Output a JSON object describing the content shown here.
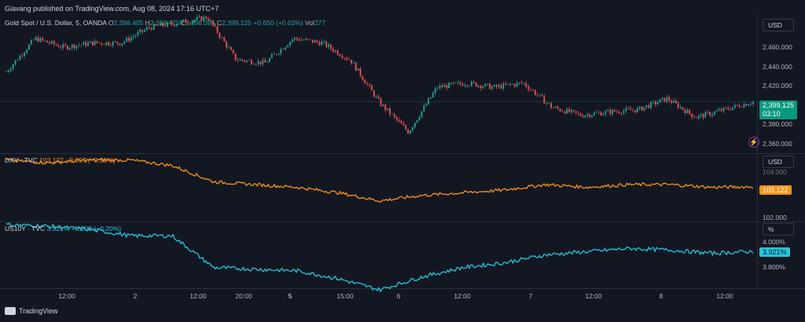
{
  "header": {
    "published": "Giavang published on TradingView.com, Aug 08, 2024 17:16 UTC+7"
  },
  "gold": {
    "name": "Gold Spot / U.S. Dollar, 5, OANDA",
    "o_key": "O",
    "o": "2,398.405",
    "h_key": "H",
    "h": "2,399.475",
    "l_key": "L",
    "l": "2,398.395",
    "c_key": "C",
    "c": "2,399.125",
    "chg": "+0.650 (+0.03%)",
    "vol_key": "Vol",
    "vol": "277",
    "price_label": "2,399.125",
    "countdown": "03:10",
    "unit": "USD",
    "ticks": [
      "2,460.000",
      "2,440.000",
      "2,420.000",
      "2,380.000",
      "2,360.000"
    ],
    "color_up": "#26a69a",
    "color_down": "#ef5350"
  },
  "dxy": {
    "name": "DXY · TVC",
    "value": "103.122",
    "chg": "−0.097 (−0.09%)",
    "price_label": "103.122",
    "unit": "USD",
    "ticks": [
      "104.000",
      "102.000"
    ],
    "color": "#f7931a"
  },
  "us10y": {
    "name": "US10Y · TVC",
    "value": "3.921%",
    "chg": "+0.008 (+0.20%)",
    "price_label": "3.921%",
    "unit": "%",
    "ticks": [
      "4.000%",
      "3.800%"
    ],
    "color": "#26c6da"
  },
  "x_axis": {
    "ticks": [
      "12:00",
      "2",
      "12:00",
      "20:00",
      "5",
      "15:00",
      "6",
      "12:00",
      "7",
      "12:00",
      "8",
      "12:00"
    ]
  },
  "footer": {
    "brand": "TradingView"
  },
  "chart_data": [
    {
      "type": "candlestick",
      "series": [
        {
          "name": "Gold Spot / U.S. Dollar, 5, OANDA"
        }
      ],
      "x": [
        "Aug 1 06:00",
        "Aug 1 12:00",
        "Aug 1 18:00",
        "Aug 2 06:00",
        "Aug 2 12:00",
        "Aug 2 16:00",
        "Aug 2 19:00",
        "Aug 2 20:00",
        "Aug 2 21:00",
        "Aug 5 03:00",
        "Aug 5 06:00",
        "Aug 5 12:00",
        "Aug 5 15:00",
        "Aug 5 17:00",
        "Aug 5 18:00",
        "Aug 5 20:00",
        "Aug 6 06:00",
        "Aug 6 12:00",
        "Aug 6 20:00",
        "Aug 7 00:00",
        "Aug 7 06:00",
        "Aug 7 12:00",
        "Aug 7 20:00",
        "Aug 8 00:00",
        "Aug 8 06:00",
        "Aug 8 12:00",
        "Aug 8 17:00"
      ],
      "close": [
        2426,
        2456,
        2448,
        2452,
        2452,
        2466,
        2470,
        2475,
        2437,
        2434,
        2456,
        2452,
        2436,
        2398,
        2372,
        2412,
        2416,
        2412,
        2416,
        2394,
        2387,
        2390,
        2392,
        2402,
        2385,
        2392,
        2399.125
      ],
      "ylim": [
        2355,
        2475
      ]
    },
    {
      "type": "line",
      "series": [
        {
          "name": "DXY · TVC"
        }
      ],
      "x": [
        "Aug 1 06:00",
        "Aug 1 12:00",
        "Aug 2 06:00",
        "Aug 2 12:00",
        "Aug 2 19:00",
        "Aug 2 20:00",
        "Aug 2 21:00",
        "Aug 5 03:00",
        "Aug 5 12:00",
        "Aug 5 17:00",
        "Aug 5 20:00",
        "Aug 6 06:00",
        "Aug 6 12:00",
        "Aug 7 00:00",
        "Aug 7 12:00",
        "Aug 7 20:00",
        "Aug 8 06:00",
        "Aug 8 12:00",
        "Aug 8 17:00"
      ],
      "values": [
        104.1,
        104.0,
        104.1,
        104.1,
        103.9,
        103.3,
        103.2,
        103.1,
        102.9,
        102.6,
        102.8,
        102.9,
        103.0,
        103.2,
        103.1,
        103.2,
        103.2,
        103.1,
        103.122
      ],
      "ylim": [
        101.9,
        104.3
      ]
    },
    {
      "type": "line",
      "series": [
        {
          "name": "US10Y · TVC"
        }
      ],
      "x": [
        "Aug 1 06:00",
        "Aug 1 12:00",
        "Aug 2 06:00",
        "Aug 2 12:00",
        "Aug 2 19:00",
        "Aug 2 20:00",
        "Aug 2 21:00",
        "Aug 5 03:00",
        "Aug 5 12:00",
        "Aug 5 17:00",
        "Aug 5 20:00",
        "Aug 6 06:00",
        "Aug 6 12:00",
        "Aug 7 00:00",
        "Aug 7 12:00",
        "Aug 7 20:00",
        "Aug 8 06:00",
        "Aug 8 12:00",
        "Aug 8 17:00"
      ],
      "values": [
        4.09,
        4.08,
        4.06,
        4.02,
        4.02,
        3.82,
        3.81,
        3.8,
        3.75,
        3.68,
        3.76,
        3.82,
        3.85,
        3.9,
        3.92,
        3.94,
        3.93,
        3.91,
        3.921
      ],
      "ylim": [
        3.7,
        4.1
      ]
    }
  ]
}
